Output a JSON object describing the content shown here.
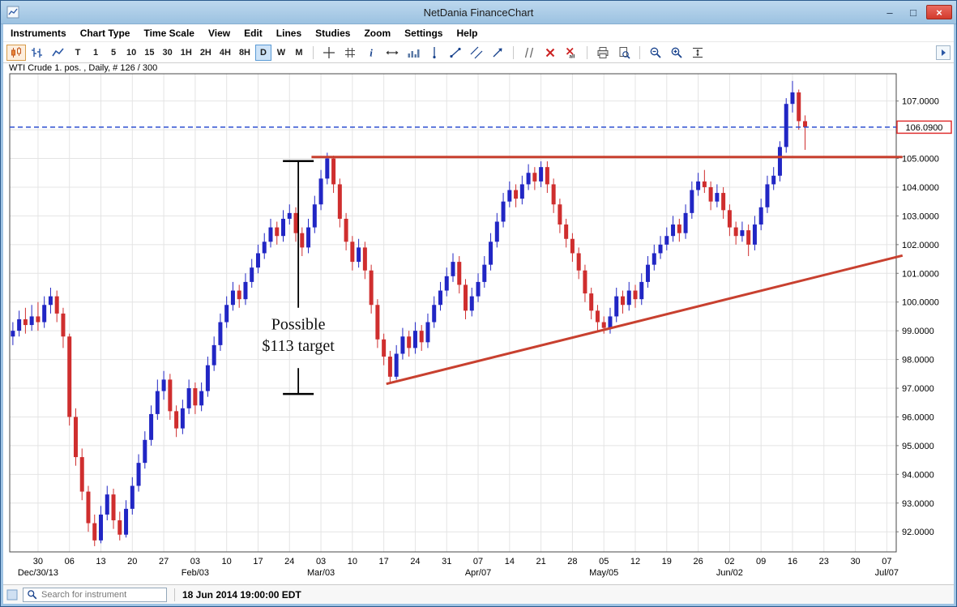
{
  "window": {
    "title": "NetDania FinanceChart",
    "minimize_glyph": "–",
    "maximize_glyph": "□",
    "close_glyph": "×"
  },
  "menu": {
    "items": [
      "Instruments",
      "Chart Type",
      "Time Scale",
      "View",
      "Edit",
      "Lines",
      "Studies",
      "Zoom",
      "Settings",
      "Help"
    ]
  },
  "toolbar": {
    "items": [
      {
        "name": "candlestick-chart-button",
        "icon": "candle",
        "selected": "orange"
      },
      {
        "name": "bar-chart-button",
        "icon": "bars"
      },
      {
        "name": "line-chart-button",
        "icon": "line"
      },
      {
        "name": "interval-tick-button",
        "label": "T"
      },
      {
        "name": "interval-1m-button",
        "label": "1"
      },
      {
        "name": "interval-5m-button",
        "label": "5"
      },
      {
        "name": "interval-10m-button",
        "label": "10"
      },
      {
        "name": "interval-15m-button",
        "label": "15"
      },
      {
        "name": "interval-30m-button",
        "label": "30"
      },
      {
        "name": "interval-1h-button",
        "label": "1H"
      },
      {
        "name": "interval-2h-button",
        "label": "2H"
      },
      {
        "name": "interval-4h-button",
        "label": "4H"
      },
      {
        "name": "interval-8h-button",
        "label": "8H"
      },
      {
        "name": "interval-daily-button",
        "label": "D",
        "selected": "blue"
      },
      {
        "name": "interval-weekly-button",
        "label": "W"
      },
      {
        "name": "interval-monthly-button",
        "label": "M"
      },
      {
        "sep": true
      },
      {
        "name": "crosshair-button",
        "icon": "crosshair"
      },
      {
        "name": "grid-button",
        "icon": "grid"
      },
      {
        "name": "info-button",
        "icon": "info"
      },
      {
        "name": "expand-horizontal-button",
        "icon": "harrows"
      },
      {
        "name": "volume-button",
        "icon": "vol"
      },
      {
        "name": "vertical-line-tool-button",
        "icon": "vline"
      },
      {
        "name": "trendline-tool-button",
        "icon": "trend"
      },
      {
        "name": "channel-tool-button",
        "icon": "channel"
      },
      {
        "name": "arrow-tool-button",
        "icon": "arrowtool"
      },
      {
        "sep": true
      },
      {
        "name": "parallel-lines-tool-button",
        "icon": "parallel"
      },
      {
        "name": "delete-drawing-button",
        "icon": "del"
      },
      {
        "name": "delete-all-drawings-button",
        "icon": "delall"
      },
      {
        "sep": true
      },
      {
        "name": "print-button",
        "icon": "print"
      },
      {
        "name": "print-preview-button",
        "icon": "preview"
      },
      {
        "sep": true
      },
      {
        "name": "zoom-out-button",
        "icon": "zoomout"
      },
      {
        "name": "zoom-in-button",
        "icon": "zoomin"
      },
      {
        "name": "fit-vertical-button",
        "icon": "fit"
      }
    ]
  },
  "statusbar": {
    "search_placeholder": "Search for instrument",
    "timestamp": "18 Jun 2014 19:00:00 EDT"
  },
  "chart_data": {
    "type": "candlestick",
    "instrument": "WTI Crude 1. pos.",
    "timeframe": "Daily",
    "bar_count": "# 126 / 300",
    "label": "WTI Crude 1. pos. , Daily, # 126 / 300",
    "price_axis": {
      "min": 92,
      "max": 107,
      "step": 1,
      "decimals": 4,
      "y_top_price": 107.95,
      "y_bottom_price": 91.3
    },
    "total_slots": 141,
    "x_axis": [
      {
        "slot": 4,
        "day": "30",
        "month": "Dec/30/13"
      },
      {
        "slot": 9,
        "day": "06"
      },
      {
        "slot": 14,
        "day": "13"
      },
      {
        "slot": 19,
        "day": "20"
      },
      {
        "slot": 24,
        "day": "27"
      },
      {
        "slot": 29,
        "day": "03",
        "month": "Feb/03"
      },
      {
        "slot": 34,
        "day": "10"
      },
      {
        "slot": 39,
        "day": "17"
      },
      {
        "slot": 44,
        "day": "24"
      },
      {
        "slot": 49,
        "day": "03",
        "month": "Mar/03"
      },
      {
        "slot": 54,
        "day": "10"
      },
      {
        "slot": 59,
        "day": "17"
      },
      {
        "slot": 64,
        "day": "24"
      },
      {
        "slot": 69,
        "day": "31"
      },
      {
        "slot": 74,
        "day": "07",
        "month": "Apr/07"
      },
      {
        "slot": 79,
        "day": "14"
      },
      {
        "slot": 84,
        "day": "21"
      },
      {
        "slot": 89,
        "day": "28"
      },
      {
        "slot": 94,
        "day": "05",
        "month": "May/05"
      },
      {
        "slot": 99,
        "day": "12"
      },
      {
        "slot": 104,
        "day": "19"
      },
      {
        "slot": 109,
        "day": "26"
      },
      {
        "slot": 114,
        "day": "02",
        "month": "Jun/02"
      },
      {
        "slot": 119,
        "day": "09"
      },
      {
        "slot": 124,
        "day": "16"
      },
      {
        "slot": 129,
        "day": "23"
      },
      {
        "slot": 134,
        "day": "30"
      },
      {
        "slot": 139,
        "day": "07",
        "month": "Jul/07"
      }
    ],
    "current_price": {
      "value": 106.09,
      "label": "106.0900"
    },
    "trendlines": [
      {
        "name": "horizontal-resistance",
        "from_slot": 47.5,
        "from_price": 105.05,
        "to_slot": 141.5,
        "to_price": 105.05
      },
      {
        "name": "ascending-support",
        "from_slot": 59.4,
        "from_price": 97.15,
        "to_slot": 141.5,
        "to_price": 101.62
      }
    ],
    "annotation": {
      "text_lines": [
        "Possible",
        "$113 target"
      ],
      "slot": 45.4,
      "top_bar_price": 104.91,
      "line1_to_price": 99.8,
      "text_prices": [
        99.05,
        98.3
      ],
      "line2_from_price": 97.7,
      "bottom_bar_price": 96.8
    },
    "colors": {
      "up": "#2126c4",
      "down": "#cf2e2e",
      "trendline": "#c8402f",
      "current_price_line": "#2d4fd0",
      "grid": "#e4e4e4",
      "tag_border": "#e03030"
    },
    "candles": [
      [
        98.8,
        99.3,
        98.5,
        99.0
      ],
      [
        99.0,
        99.7,
        98.8,
        99.4
      ],
      [
        99.4,
        99.8,
        98.9,
        99.2
      ],
      [
        99.2,
        99.9,
        99.0,
        99.5
      ],
      [
        99.5,
        100.0,
        99.0,
        99.3
      ],
      [
        99.3,
        100.2,
        99.1,
        99.9
      ],
      [
        99.9,
        100.5,
        99.6,
        100.2
      ],
      [
        100.2,
        100.4,
        99.3,
        99.6
      ],
      [
        99.6,
        99.8,
        98.4,
        98.8
      ],
      [
        98.8,
        98.9,
        95.7,
        96.0
      ],
      [
        96.0,
        96.3,
        94.3,
        94.6
      ],
      [
        94.6,
        94.9,
        93.1,
        93.4
      ],
      [
        93.4,
        93.6,
        92.0,
        92.3
      ],
      [
        92.3,
        92.6,
        91.5,
        91.7
      ],
      [
        91.7,
        92.9,
        91.6,
        92.6
      ],
      [
        92.6,
        93.6,
        92.4,
        93.3
      ],
      [
        93.3,
        93.5,
        92.1,
        92.4
      ],
      [
        92.4,
        92.7,
        91.7,
        91.9
      ],
      [
        91.9,
        93.1,
        91.8,
        92.8
      ],
      [
        92.8,
        93.9,
        92.6,
        93.6
      ],
      [
        93.6,
        94.7,
        93.4,
        94.4
      ],
      [
        94.4,
        95.5,
        94.2,
        95.2
      ],
      [
        95.2,
        96.4,
        95.0,
        96.1
      ],
      [
        96.1,
        97.3,
        95.9,
        96.9
      ],
      [
        96.9,
        97.6,
        96.6,
        97.3
      ],
      [
        97.3,
        97.5,
        95.9,
        96.2
      ],
      [
        96.2,
        96.4,
        95.3,
        95.6
      ],
      [
        95.6,
        96.6,
        95.4,
        96.3
      ],
      [
        96.3,
        97.3,
        96.1,
        97.0
      ],
      [
        97.0,
        97.2,
        96.1,
        96.4
      ],
      [
        96.4,
        97.2,
        96.2,
        96.9
      ],
      [
        96.9,
        98.1,
        96.7,
        97.8
      ],
      [
        97.8,
        98.8,
        97.6,
        98.5
      ],
      [
        98.5,
        99.6,
        98.3,
        99.3
      ],
      [
        99.3,
        100.2,
        99.1,
        99.9
      ],
      [
        99.9,
        100.7,
        99.7,
        100.4
      ],
      [
        100.4,
        100.6,
        99.8,
        100.1
      ],
      [
        100.1,
        101.0,
        99.9,
        100.7
      ],
      [
        100.7,
        101.5,
        100.5,
        101.2
      ],
      [
        101.2,
        102.0,
        101.0,
        101.7
      ],
      [
        101.7,
        102.4,
        101.5,
        102.1
      ],
      [
        102.1,
        102.9,
        101.9,
        102.6
      ],
      [
        102.6,
        102.8,
        102.0,
        102.3
      ],
      [
        102.3,
        103.2,
        102.1,
        102.9
      ],
      [
        102.9,
        103.4,
        102.7,
        103.1
      ],
      [
        103.1,
        103.3,
        102.1,
        102.4
      ],
      [
        102.4,
        102.6,
        101.6,
        101.9
      ],
      [
        101.9,
        102.9,
        101.7,
        102.6
      ],
      [
        102.6,
        103.7,
        102.4,
        103.4
      ],
      [
        103.4,
        104.6,
        103.2,
        104.3
      ],
      [
        104.3,
        105.2,
        104.1,
        105.0
      ],
      [
        105.0,
        105.1,
        103.8,
        104.1
      ],
      [
        104.1,
        104.3,
        102.6,
        102.9
      ],
      [
        102.9,
        103.1,
        101.8,
        102.1
      ],
      [
        102.1,
        102.3,
        101.1,
        101.4
      ],
      [
        101.4,
        102.2,
        101.2,
        101.9
      ],
      [
        101.9,
        102.1,
        100.8,
        101.1
      ],
      [
        101.1,
        101.3,
        99.6,
        99.9
      ],
      [
        99.9,
        100.1,
        98.4,
        98.7
      ],
      [
        98.7,
        98.9,
        97.8,
        98.1
      ],
      [
        98.1,
        98.3,
        97.2,
        97.4
      ],
      [
        97.4,
        98.5,
        97.3,
        98.2
      ],
      [
        98.2,
        99.1,
        98.0,
        98.8
      ],
      [
        98.8,
        99.0,
        98.1,
        98.4
      ],
      [
        98.4,
        99.3,
        98.2,
        99.0
      ],
      [
        99.0,
        99.2,
        98.3,
        98.6
      ],
      [
        98.6,
        99.6,
        98.4,
        99.3
      ],
      [
        99.3,
        100.2,
        99.1,
        99.9
      ],
      [
        99.9,
        100.7,
        99.7,
        100.4
      ],
      [
        100.4,
        101.2,
        100.2,
        100.9
      ],
      [
        100.9,
        101.7,
        100.7,
        101.4
      ],
      [
        101.4,
        101.6,
        100.3,
        100.6
      ],
      [
        100.6,
        100.8,
        99.4,
        99.7
      ],
      [
        99.7,
        100.5,
        99.5,
        100.2
      ],
      [
        100.2,
        101.0,
        100.0,
        100.7
      ],
      [
        100.7,
        101.6,
        100.5,
        101.3
      ],
      [
        101.3,
        102.4,
        101.1,
        102.1
      ],
      [
        102.1,
        103.1,
        101.9,
        102.8
      ],
      [
        102.8,
        103.8,
        102.6,
        103.5
      ],
      [
        103.5,
        104.2,
        103.3,
        103.9
      ],
      [
        103.9,
        104.1,
        103.3,
        103.6
      ],
      [
        103.6,
        104.4,
        103.4,
        104.1
      ],
      [
        104.1,
        104.8,
        103.9,
        104.5
      ],
      [
        104.5,
        104.7,
        103.9,
        104.2
      ],
      [
        104.2,
        104.9,
        104.0,
        104.7
      ],
      [
        104.7,
        104.9,
        103.8,
        104.1
      ],
      [
        104.1,
        104.3,
        103.1,
        103.4
      ],
      [
        103.4,
        103.6,
        102.4,
        102.7
      ],
      [
        102.7,
        102.9,
        101.9,
        102.2
      ],
      [
        102.2,
        102.4,
        101.4,
        101.7
      ],
      [
        101.7,
        101.9,
        100.8,
        101.1
      ],
      [
        101.1,
        101.3,
        100.0,
        100.3
      ],
      [
        100.3,
        100.5,
        99.4,
        99.7
      ],
      [
        99.7,
        99.9,
        99.0,
        99.3
      ],
      [
        99.3,
        99.5,
        98.9,
        99.1
      ],
      [
        99.1,
        99.8,
        98.9,
        99.5
      ],
      [
        99.5,
        100.5,
        99.3,
        100.2
      ],
      [
        100.2,
        100.4,
        99.6,
        99.9
      ],
      [
        99.9,
        100.7,
        99.7,
        100.4
      ],
      [
        100.4,
        100.6,
        99.8,
        100.1
      ],
      [
        100.1,
        101.0,
        99.9,
        100.7
      ],
      [
        100.7,
        101.6,
        100.5,
        101.3
      ],
      [
        101.3,
        102.0,
        101.1,
        101.7
      ],
      [
        101.7,
        102.3,
        101.5,
        102.0
      ],
      [
        102.0,
        102.6,
        101.8,
        102.3
      ],
      [
        102.3,
        103.0,
        102.1,
        102.7
      ],
      [
        102.7,
        102.9,
        102.1,
        102.4
      ],
      [
        102.4,
        103.4,
        102.2,
        103.1
      ],
      [
        103.1,
        104.2,
        102.9,
        103.9
      ],
      [
        103.9,
        104.5,
        103.7,
        104.2
      ],
      [
        104.2,
        104.6,
        103.8,
        104.0
      ],
      [
        104.0,
        104.2,
        103.2,
        103.5
      ],
      [
        103.5,
        104.1,
        103.3,
        103.8
      ],
      [
        103.8,
        104.0,
        102.9,
        103.2
      ],
      [
        103.2,
        103.4,
        102.3,
        102.6
      ],
      [
        102.6,
        102.8,
        102.0,
        102.3
      ],
      [
        102.3,
        102.8,
        102.1,
        102.5
      ],
      [
        102.5,
        102.7,
        101.6,
        102.0
      ],
      [
        102.0,
        103.0,
        101.8,
        102.7
      ],
      [
        102.7,
        103.6,
        102.5,
        103.3
      ],
      [
        103.3,
        104.4,
        103.1,
        104.1
      ],
      [
        104.1,
        104.7,
        103.9,
        104.4
      ],
      [
        104.4,
        105.6,
        104.2,
        105.4
      ],
      [
        105.4,
        107.1,
        105.2,
        106.9
      ],
      [
        106.9,
        107.7,
        106.6,
        107.3
      ],
      [
        107.3,
        107.4,
        106.0,
        106.3
      ],
      [
        106.3,
        106.5,
        105.3,
        106.09
      ]
    ]
  }
}
